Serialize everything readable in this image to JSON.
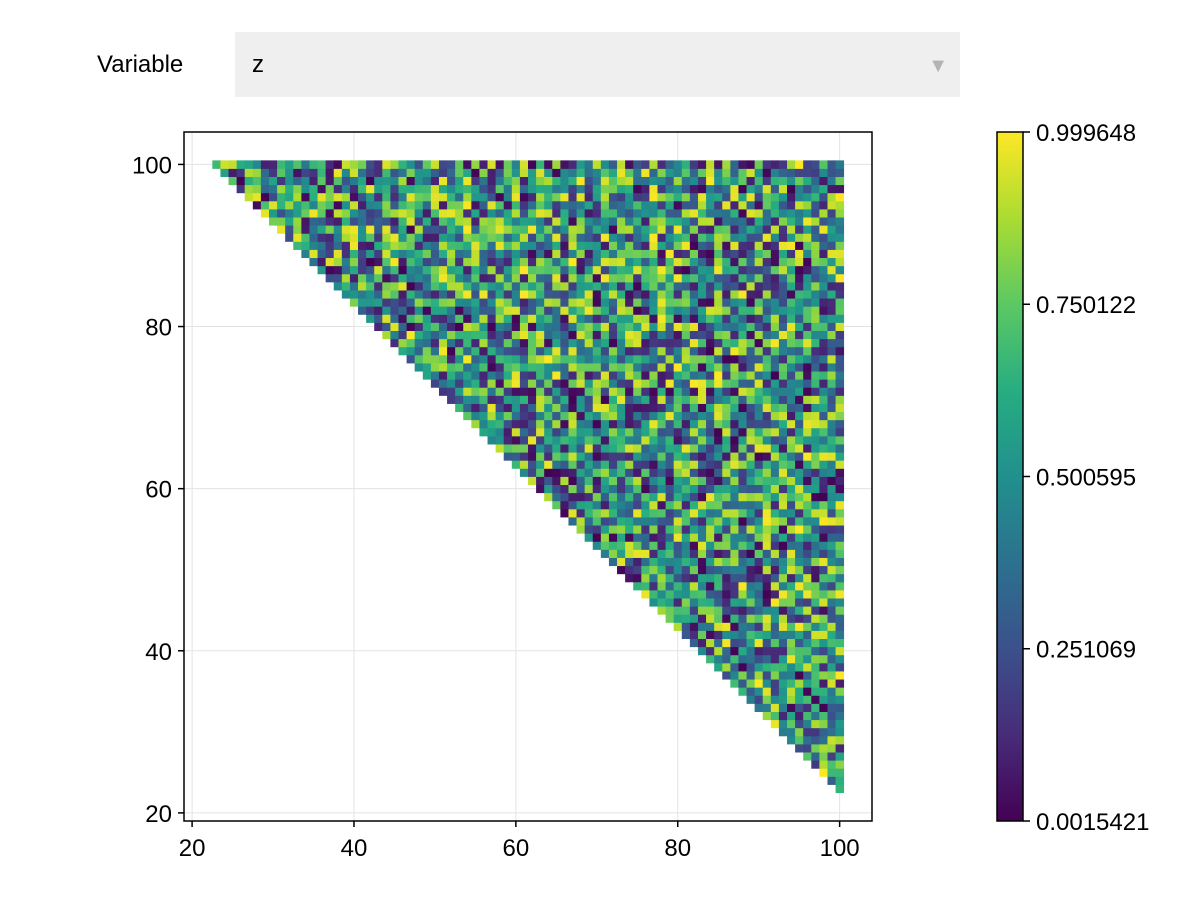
{
  "control": {
    "label": "Variable",
    "selected": "z",
    "arrow_icon": "triangle-down-icon"
  },
  "chart_data": {
    "type": "heatmap",
    "title": "",
    "xlabel": "",
    "ylabel": "",
    "xlim": [
      19,
      104
    ],
    "ylim": [
      19,
      104
    ],
    "xticks": [
      20,
      40,
      60,
      80,
      100
    ],
    "yticks": [
      20,
      40,
      60,
      80,
      100
    ],
    "grid": true,
    "colormap": "viridis",
    "x_range": [
      23,
      100
    ],
    "y_range": [
      23,
      100
    ],
    "mask": "x + y >= 123 (upper-right triangle filled)",
    "value_range": [
      0.0015421,
      0.999648
    ],
    "colorbar": {
      "ticks": [
        "0.0015421",
        "0.251069",
        "0.500595",
        "0.750122",
        "0.999648"
      ],
      "tick_values": [
        0.0015421,
        0.251069,
        0.500595,
        0.750122,
        0.999648
      ]
    }
  }
}
